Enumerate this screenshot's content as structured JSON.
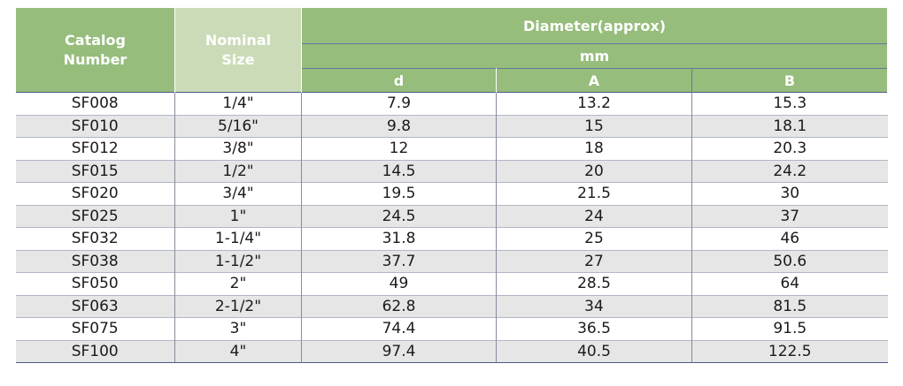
{
  "header": {
    "catalog_number": "Catalog\nNumber",
    "nominal_size": "Nominal\nSize",
    "diameter": "Diameter(approx)",
    "unit": "mm",
    "col_d": "d",
    "col_a": "A",
    "col_b": "B"
  },
  "rows": [
    {
      "catalog": "SF008",
      "size": "1/4\"",
      "d": "7.9",
      "a": "13.2",
      "b": "15.3"
    },
    {
      "catalog": "SF010",
      "size": "5/16\"",
      "d": "9.8",
      "a": "15",
      "b": "18.1"
    },
    {
      "catalog": "SF012",
      "size": "3/8\"",
      "d": "12",
      "a": "18",
      "b": "20.3"
    },
    {
      "catalog": "SF015",
      "size": "1/2\"",
      "d": "14.5",
      "a": "20",
      "b": "24.2"
    },
    {
      "catalog": "SF020",
      "size": "3/4\"",
      "d": "19.5",
      "a": "21.5",
      "b": "30"
    },
    {
      "catalog": "SF025",
      "size": "1\"",
      "d": "24.5",
      "a": "24",
      "b": "37"
    },
    {
      "catalog": "SF032",
      "size": "1-1/4\"",
      "d": "31.8",
      "a": "25",
      "b": "46"
    },
    {
      "catalog": "SF038",
      "size": "1-1/2\"",
      "d": "37.7",
      "a": "27",
      "b": "50.6"
    },
    {
      "catalog": "SF050",
      "size": "2\"",
      "d": "49",
      "a": "28.5",
      "b": "64"
    },
    {
      "catalog": "SF063",
      "size": "2-1/2\"",
      "d": "62.8",
      "a": "34",
      "b": "81.5"
    },
    {
      "catalog": "SF075",
      "size": "3\"",
      "d": "74.4",
      "a": "36.5",
      "b": "91.5"
    },
    {
      "catalog": "SF100",
      "size": "4\"",
      "d": "97.4",
      "a": "40.5",
      "b": "122.5"
    }
  ]
}
